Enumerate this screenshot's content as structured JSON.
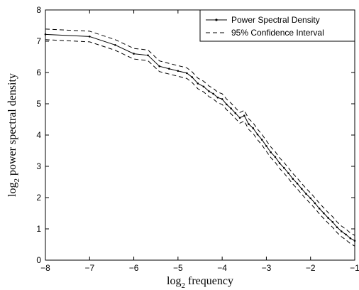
{
  "chart_data": {
    "type": "line",
    "xlabel_main": "log",
    "xlabel_sub": "2",
    "xlabel_rest": " frequency",
    "ylabel_main": "log",
    "ylabel_sub": "2",
    "ylabel_rest": " power spectral density",
    "xlim": [
      -8,
      -1
    ],
    "ylim": [
      0,
      8
    ],
    "xticks": [
      "-8",
      "-7",
      "-6",
      "-5",
      "-4",
      "-3",
      "-2",
      "-1"
    ],
    "yticks": [
      "0",
      "1",
      "2",
      "3",
      "4",
      "5",
      "6",
      "7",
      "8"
    ],
    "grid": false,
    "legend_position": "top-right",
    "series": [
      {
        "name": "Power Spectral Density",
        "style": "solid-with-dots",
        "color": "#000000",
        "points": [
          [
            -8.0,
            7.22
          ],
          [
            -7.0,
            7.15
          ],
          [
            -6.42,
            6.88
          ],
          [
            -6.0,
            6.6
          ],
          [
            -5.68,
            6.55
          ],
          [
            -5.42,
            6.2
          ],
          [
            -5.2,
            6.12
          ],
          [
            -5.0,
            6.05
          ],
          [
            -4.8,
            5.98
          ],
          [
            -4.68,
            5.85
          ],
          [
            -4.55,
            5.65
          ],
          [
            -4.42,
            5.55
          ],
          [
            -4.3,
            5.4
          ],
          [
            -4.2,
            5.32
          ],
          [
            -4.1,
            5.2
          ],
          [
            -4.0,
            5.15
          ],
          [
            -3.9,
            4.98
          ],
          [
            -3.8,
            4.85
          ],
          [
            -3.7,
            4.7
          ],
          [
            -3.6,
            4.55
          ],
          [
            -3.5,
            4.62
          ],
          [
            -3.4,
            4.35
          ],
          [
            -3.3,
            4.22
          ],
          [
            -3.2,
            4.02
          ],
          [
            -3.1,
            3.85
          ],
          [
            -3.0,
            3.65
          ],
          [
            -2.9,
            3.45
          ],
          [
            -2.8,
            3.3
          ],
          [
            -2.7,
            3.1
          ],
          [
            -2.6,
            2.95
          ],
          [
            -2.5,
            2.78
          ],
          [
            -2.4,
            2.6
          ],
          [
            -2.3,
            2.45
          ],
          [
            -2.2,
            2.28
          ],
          [
            -2.1,
            2.12
          ],
          [
            -2.0,
            1.98
          ],
          [
            -1.9,
            1.82
          ],
          [
            -1.8,
            1.65
          ],
          [
            -1.7,
            1.5
          ],
          [
            -1.6,
            1.35
          ],
          [
            -1.5,
            1.22
          ],
          [
            -1.4,
            1.05
          ],
          [
            -1.3,
            0.92
          ],
          [
            -1.2,
            0.82
          ],
          [
            -1.1,
            0.7
          ],
          [
            -1.0,
            0.62
          ]
        ]
      }
    ],
    "confidence_interval": {
      "name": "95% Confidence Interval",
      "style": "dashed",
      "color": "#000000",
      "upper_offset": 0.17,
      "lower_offset": 0.17
    }
  }
}
